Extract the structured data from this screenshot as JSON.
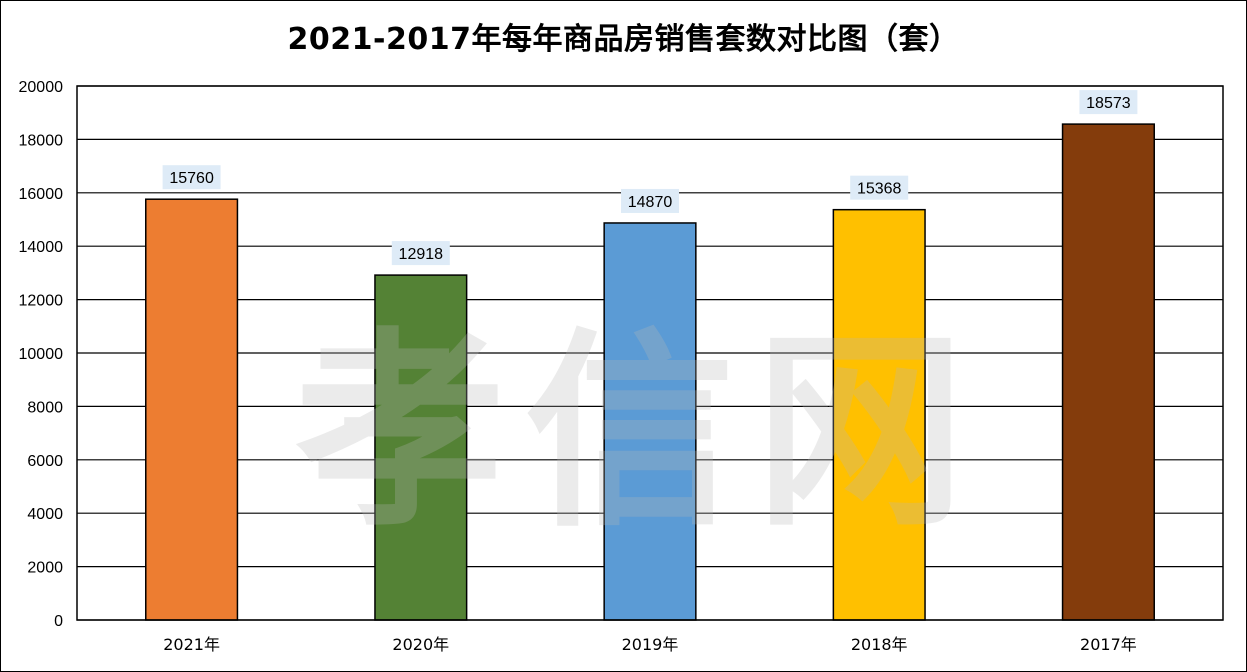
{
  "chart_data": {
    "type": "bar",
    "title": "2021-2017年每年商品房销售套数对比图（套）",
    "categories": [
      "2021年",
      "2020年",
      "2019年",
      "2018年",
      "2017年"
    ],
    "values": [
      15760,
      12918,
      14870,
      15368,
      18573
    ],
    "colors": [
      "#ED7D31",
      "#548235",
      "#5B9BD5",
      "#FFC000",
      "#843C0C"
    ],
    "ylim": [
      0,
      20000
    ],
    "yticks": [
      0,
      2000,
      4000,
      6000,
      8000,
      10000,
      12000,
      14000,
      16000,
      18000,
      20000
    ],
    "xlabel": "",
    "ylabel": "",
    "grid": true,
    "legend": "none",
    "data_label_bg": "#DEEBF7"
  },
  "watermark": "孝信网"
}
